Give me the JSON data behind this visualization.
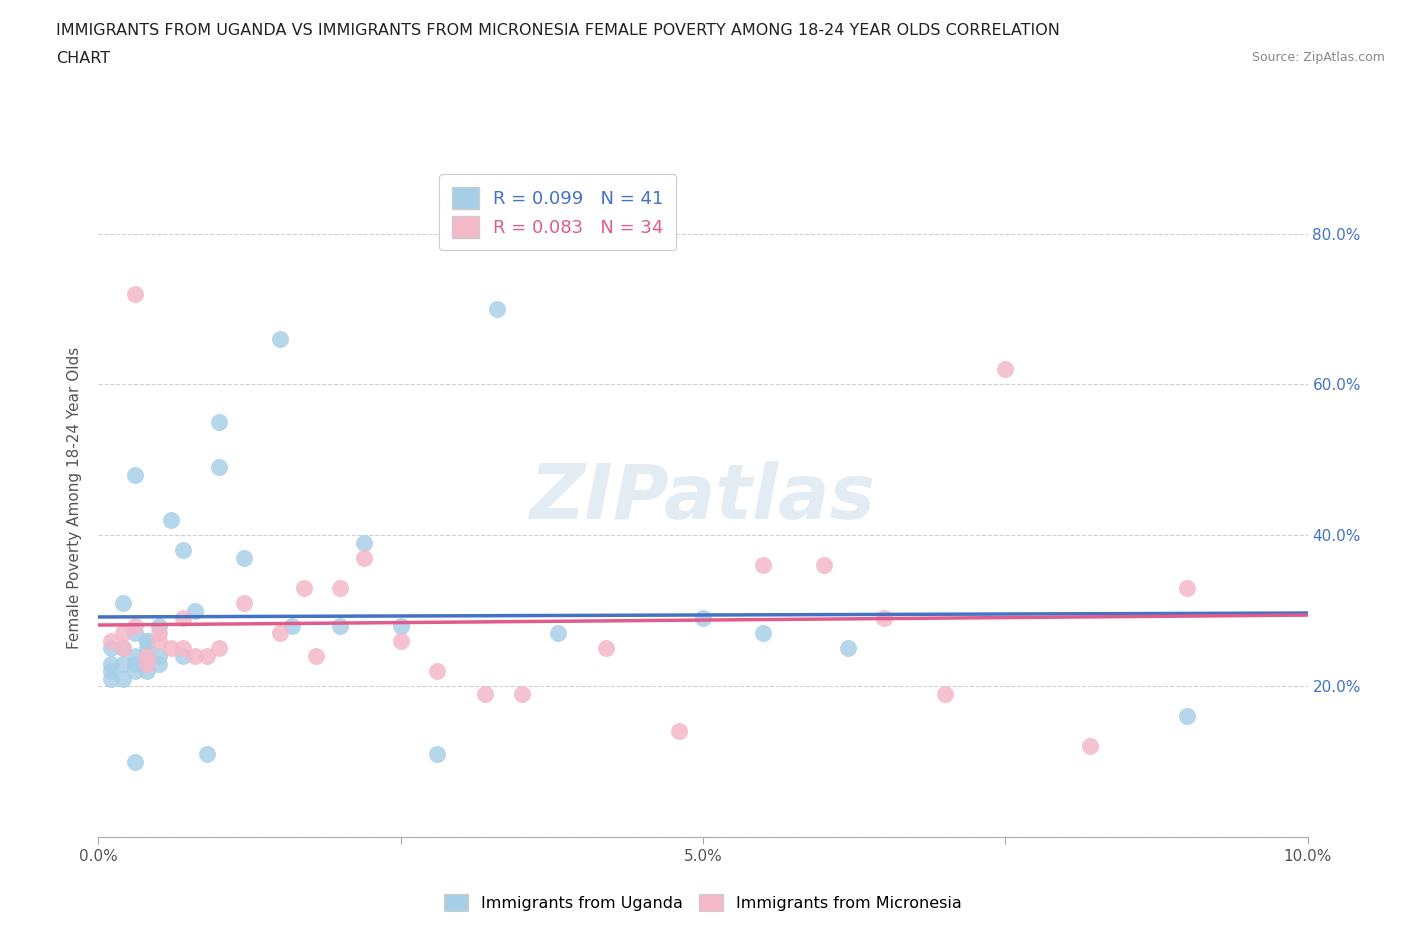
{
  "title_line1": "IMMIGRANTS FROM UGANDA VS IMMIGRANTS FROM MICRONESIA FEMALE POVERTY AMONG 18-24 YEAR OLDS CORRELATION",
  "title_line2": "CHART",
  "source": "Source: ZipAtlas.com",
  "ylabel": "Female Poverty Among 18-24 Year Olds",
  "xlim": [
    0.0,
    0.1
  ],
  "ylim": [
    0.0,
    0.9
  ],
  "yticks": [
    0.0,
    0.2,
    0.4,
    0.6,
    0.8
  ],
  "ytick_labels_right": [
    "",
    "20.0%",
    "40.0%",
    "60.0%",
    "80.0%"
  ],
  "xticks": [
    0.0,
    0.025,
    0.05,
    0.075,
    0.1
  ],
  "xtick_labels": [
    "0.0%",
    "",
    "5.0%",
    "",
    "10.0%"
  ],
  "uganda_color": "#a8cfe8",
  "micronesia_color": "#f4b8c8",
  "trend_uganda_color": "#4472c4",
  "trend_micronesia_color": "#e05c8a",
  "uganda_R": "0.099",
  "uganda_N": "41",
  "micronesia_R": "0.083",
  "micronesia_N": "34",
  "watermark": "ZIPatlas",
  "uganda_x": [
    0.001,
    0.001,
    0.001,
    0.002,
    0.002,
    0.002,
    0.003,
    0.003,
    0.003,
    0.003,
    0.004,
    0.004,
    0.004,
    0.005,
    0.005,
    0.006,
    0.007,
    0.007,
    0.008,
    0.01,
    0.01,
    0.012,
    0.015,
    0.016,
    0.02,
    0.022,
    0.025,
    0.028,
    0.033,
    0.038,
    0.05,
    0.055,
    0.062,
    0.001,
    0.002,
    0.003,
    0.003,
    0.004,
    0.005,
    0.009,
    0.09
  ],
  "uganda_y": [
    0.25,
    0.23,
    0.22,
    0.25,
    0.23,
    0.21,
    0.27,
    0.24,
    0.23,
    0.22,
    0.26,
    0.25,
    0.22,
    0.28,
    0.24,
    0.42,
    0.38,
    0.24,
    0.3,
    0.49,
    0.55,
    0.37,
    0.66,
    0.28,
    0.28,
    0.39,
    0.28,
    0.11,
    0.7,
    0.27,
    0.29,
    0.27,
    0.25,
    0.21,
    0.31,
    0.1,
    0.48,
    0.26,
    0.23,
    0.11,
    0.16
  ],
  "micronesia_x": [
    0.001,
    0.002,
    0.003,
    0.004,
    0.005,
    0.006,
    0.007,
    0.007,
    0.008,
    0.009,
    0.01,
    0.012,
    0.015,
    0.017,
    0.018,
    0.02,
    0.022,
    0.025,
    0.028,
    0.032,
    0.035,
    0.042,
    0.048,
    0.055,
    0.06,
    0.065,
    0.07,
    0.075,
    0.082,
    0.09,
    0.003,
    0.004,
    0.005,
    0.002
  ],
  "micronesia_y": [
    0.26,
    0.27,
    0.28,
    0.23,
    0.27,
    0.25,
    0.29,
    0.25,
    0.24,
    0.24,
    0.25,
    0.31,
    0.27,
    0.33,
    0.24,
    0.33,
    0.37,
    0.26,
    0.22,
    0.19,
    0.19,
    0.25,
    0.14,
    0.36,
    0.36,
    0.29,
    0.19,
    0.62,
    0.12,
    0.33,
    0.72,
    0.24,
    0.26,
    0.25
  ]
}
